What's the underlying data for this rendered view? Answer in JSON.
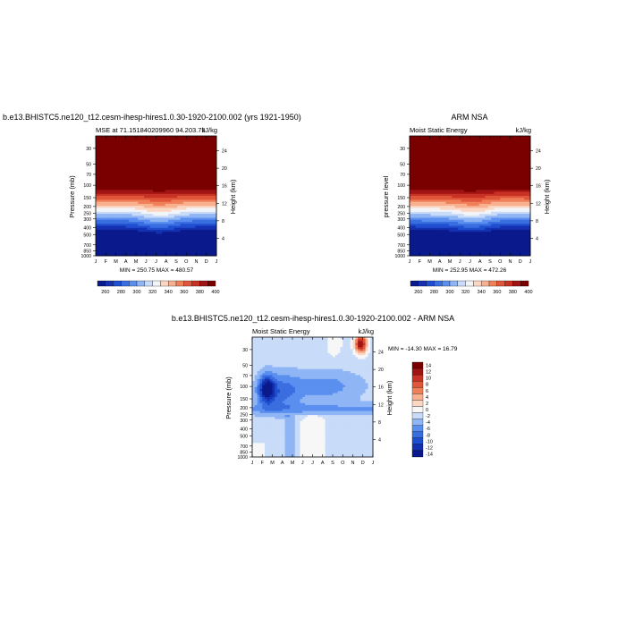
{
  "panels": {
    "model": {
      "title": "b.e13.BHISTC5.ne120_t12.cesm-ihesp-hires1.0.30-1920-2100.002 (yrs 1921-1950)",
      "left_label": "MSE at 71.151840209960 94.203.75",
      "units": "kJ/kg",
      "ylabel": "Pressure (mb)",
      "ylabel_right": "Height (km)",
      "minmax": "MIN = 250.75  MAX = 480.57"
    },
    "obs": {
      "title": "ARM NSA",
      "left_label": "Moist Static Energy",
      "units": "kJ/kg",
      "ylabel": "pressure level",
      "ylabel_right": "Height (km)",
      "minmax": "MIN = 252.95  MAX = 472.26"
    },
    "diff": {
      "title": "b.e13.BHISTC5.ne120_t12.cesm-ihesp-hires1.0.30-1920-2100.002 - ARM NSA",
      "left_label": "Moist Static Energy",
      "units": "kJ/kg",
      "ylabel": "Pressure (mb)",
      "ylabel_right": "Height (km)",
      "minmax": "MIN = -14.30  MAX =  16.79"
    }
  },
  "chart_data": [
    {
      "type": "heatmap",
      "panel": "model",
      "x_ticks": [
        "J",
        "F",
        "M",
        "A",
        "M",
        "J",
        "J",
        "A",
        "S",
        "O",
        "N",
        "D",
        "J"
      ],
      "p_ticks": [
        30,
        50,
        70,
        100,
        150,
        200,
        250,
        300,
        400,
        500,
        700,
        850,
        1000
      ],
      "height_ticks": [
        4,
        8,
        12,
        16,
        20,
        24
      ],
      "colorbar_levels": [
        260,
        270,
        280,
        290,
        300,
        310,
        320,
        330,
        340,
        350,
        360,
        370,
        380,
        390,
        400
      ],
      "colorbar_labels": [
        "260",
        "280",
        "300",
        "320",
        "340",
        "360",
        "380",
        "400"
      ],
      "min": 250.75,
      "max": 480.57
    },
    {
      "type": "heatmap",
      "panel": "obs",
      "x_ticks": [
        "J",
        "F",
        "M",
        "A",
        "M",
        "J",
        "J",
        "A",
        "S",
        "O",
        "N",
        "D",
        "J"
      ],
      "p_ticks": [
        30,
        50,
        70,
        100,
        150,
        200,
        250,
        300,
        400,
        500,
        700,
        850,
        1000
      ],
      "height_ticks": [
        4,
        8,
        12,
        16,
        20,
        24
      ],
      "colorbar_levels": [
        260,
        270,
        280,
        290,
        300,
        310,
        320,
        330,
        340,
        350,
        360,
        370,
        380,
        390,
        400
      ],
      "colorbar_labels": [
        "260",
        "280",
        "300",
        "320",
        "340",
        "360",
        "380",
        "400"
      ],
      "min": 252.95,
      "max": 472.26
    },
    {
      "type": "heatmap",
      "panel": "diff",
      "x_ticks": [
        "J",
        "F",
        "M",
        "A",
        "M",
        "J",
        "J",
        "A",
        "S",
        "O",
        "N",
        "D",
        "J"
      ],
      "p_ticks": [
        30,
        50,
        70,
        100,
        150,
        200,
        250,
        300,
        400,
        500,
        700,
        850,
        1000
      ],
      "height_ticks": [
        4,
        8,
        12,
        16,
        20,
        24
      ],
      "colorbar_levels": [
        14,
        12,
        10,
        8,
        6,
        4,
        2,
        0,
        -2,
        -4,
        -6,
        -8,
        -10,
        -12,
        -14
      ],
      "colorbar_labels": [
        "14",
        "12",
        "10",
        "8",
        "6",
        "4",
        "2",
        "0",
        "-2",
        "-4",
        "-6",
        "-8",
        "-10",
        "-12",
        "-14"
      ],
      "min": -14.3,
      "max": 16.79
    }
  ],
  "colors": {
    "msе_scale": [
      "#0a1a8c",
      "#1530b0",
      "#1f4fd0",
      "#3a6ee0",
      "#5a8ff0",
      "#8fb5f5",
      "#c8dbf8",
      "#f2f4f8",
      "#fbd6c2",
      "#f8b08e",
      "#f0805a",
      "#e0563a",
      "#c83224",
      "#a01414",
      "#7a0000"
    ],
    "diff_scale": [
      "#7a0000",
      "#a01414",
      "#c83224",
      "#e0563a",
      "#f0805a",
      "#f8b08e",
      "#fbd6c2",
      "#f7f7f7",
      "#c8dbf8",
      "#8fb5f5",
      "#5a8ff0",
      "#3a6ee0",
      "#1f4fd0",
      "#1530b0",
      "#0a1a8c"
    ]
  }
}
